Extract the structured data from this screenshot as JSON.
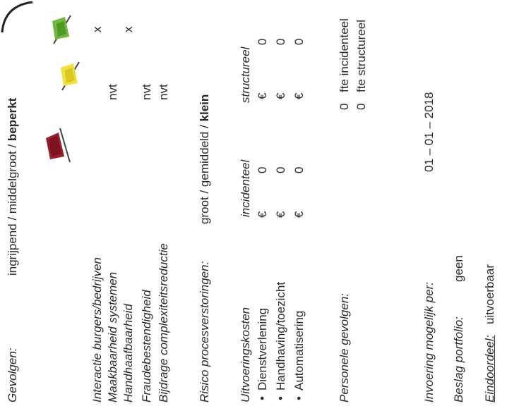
{
  "gevolgen": {
    "label": "Gevolgen:",
    "opt1": "ingrijpend",
    "sep1": " / ",
    "opt2": "middelgroot",
    "sep2": " / ",
    "opt3": "beperkt"
  },
  "flag_colors": {
    "red": "#9c1d2a",
    "yellow": "#f0e040",
    "green": "#6fb83a"
  },
  "criteria": [
    {
      "label": "Interactie burgers/bedrijven",
      "mark_beperkt": "x"
    },
    {
      "label": "Maakbaarheid systemen",
      "mark_middelgroot": "nvt"
    },
    {
      "label": "Handhaafbaarheid",
      "mark_beperkt": "x"
    },
    {
      "label": "Fraudebestendigheid",
      "mark_middelgroot": "nvt"
    },
    {
      "label": "Bijdrage complexiteitsreductie",
      "mark_middelgroot": "nvt"
    }
  ],
  "risico": {
    "label": "Risico procesverstoringen:",
    "opt1": "groot",
    "sep1": " / ",
    "opt2": "gemiddeld",
    "sep2": " / ",
    "opt3": "klein"
  },
  "kosten": {
    "label": "Uitvoeringskosten",
    "col_incidenteel": "incidenteel",
    "col_structureel": "structureel",
    "rows": [
      {
        "label": "Dienstverlening",
        "cur": "€",
        "incidenteel": "0",
        "structureel": "0"
      },
      {
        "label": "Handhaving/toezicht",
        "cur": "€",
        "incidenteel": "0",
        "structureel": "0"
      },
      {
        "label": "Automatisering",
        "cur": "€",
        "incidenteel": "0",
        "structureel": "0"
      }
    ]
  },
  "personeel": {
    "label": "Personele gevolgen:",
    "incidenteel_value": "0",
    "incidenteel_unit": "fte incidenteel",
    "structureel_value": "0",
    "structureel_unit": "fte structureel"
  },
  "invoering": {
    "label": "Invoering mogelijk per:",
    "datum": "01 – 01 – 2018"
  },
  "beslag": {
    "label": "Beslag portfolio:",
    "value": "geen"
  },
  "eindoordeel": {
    "label": "Eindoordeel:",
    "value": "uitvoerbaar"
  }
}
